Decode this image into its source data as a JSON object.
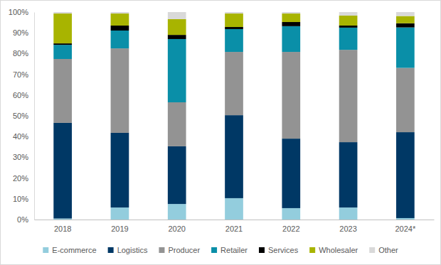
{
  "chart_data": {
    "type": "bar",
    "stacked": true,
    "legend": "bottom",
    "grid": false,
    "categories": [
      "2018",
      "2019",
      "2020",
      "2021",
      "2022",
      "2023",
      "2024*"
    ],
    "ylim": [
      0,
      100
    ],
    "yticks": [
      {
        "value": 0,
        "label": "0%"
      },
      {
        "value": 10,
        "label": "10%"
      },
      {
        "value": 20,
        "label": "20%"
      },
      {
        "value": 30,
        "label": "30%"
      },
      {
        "value": 40,
        "label": "40%"
      },
      {
        "value": 50,
        "label": "50%"
      },
      {
        "value": 60,
        "label": "60%"
      },
      {
        "value": 70,
        "label": "70%"
      },
      {
        "value": 80,
        "label": "80%"
      },
      {
        "value": 90,
        "label": "90%"
      },
      {
        "value": 100,
        "label": "100%"
      }
    ],
    "series": [
      {
        "name": "E-commerce",
        "color": "#93cddd",
        "values": [
          0.5,
          5.8,
          7.5,
          10.3,
          5.5,
          5.8,
          0.7
        ]
      },
      {
        "name": "Logistics",
        "color": "#003865",
        "values": [
          46.1,
          36.0,
          27.8,
          40.0,
          33.5,
          31.5,
          41.4
        ]
      },
      {
        "name": "Producer",
        "color": "#939393",
        "values": [
          30.8,
          40.7,
          21.2,
          30.5,
          41.8,
          44.5,
          31.0
        ]
      },
      {
        "name": "Retailer",
        "color": "#0a8fa8",
        "values": [
          6.8,
          8.6,
          30.5,
          11.0,
          12.4,
          10.7,
          19.5
        ]
      },
      {
        "name": "Services",
        "color": "#000000",
        "values": [
          0.7,
          2.4,
          2.0,
          1.0,
          2.0,
          1.0,
          2.0
        ]
      },
      {
        "name": "Wholesaler",
        "color": "#a8b400",
        "values": [
          14.4,
          5.8,
          7.6,
          6.5,
          4.1,
          4.8,
          3.5
        ]
      },
      {
        "name": "Other",
        "color": "#d9d9d9",
        "values": [
          0.7,
          0.7,
          3.4,
          0.7,
          0.7,
          1.7,
          1.9
        ]
      }
    ]
  }
}
